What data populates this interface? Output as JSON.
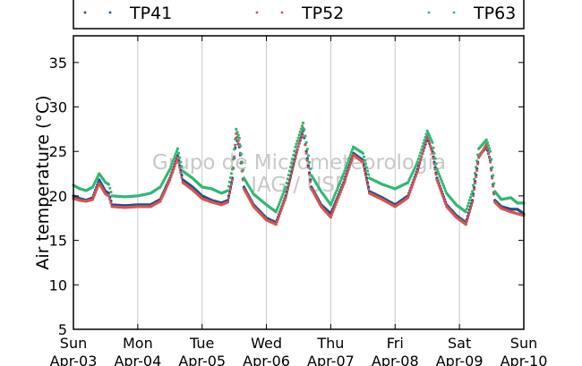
{
  "chart_data": {
    "type": "scatter",
    "title": "",
    "xlabel": "",
    "ylabel": "Air temperature (°C)",
    "watermark": [
      "Grupo de Micrometeorologia",
      "IAG / USP"
    ],
    "ylim": [
      5,
      38
    ],
    "yticks": [
      5,
      10,
      15,
      20,
      25,
      30,
      35
    ],
    "xlim": [
      "2016-04-03 00:00",
      "2016-04-10 00:00"
    ],
    "xticks": [
      {
        "day": "Sun",
        "date": "Apr-03"
      },
      {
        "day": "Mon",
        "date": "Apr-04"
      },
      {
        "day": "Tue",
        "date": "Apr-05"
      },
      {
        "day": "Wed",
        "date": "Apr-06"
      },
      {
        "day": "Thu",
        "date": "Apr-07"
      },
      {
        "day": "Fri",
        "date": "Apr-08"
      },
      {
        "day": "Sat",
        "date": "Apr-09"
      },
      {
        "day": "Sun",
        "date": "Apr-10"
      }
    ],
    "grid": "vertical",
    "legend_position": "top",
    "series": [
      {
        "name": "TP41",
        "color": "#1f4e8c",
        "points": [
          [
            0,
            20.0
          ],
          [
            0.1,
            19.7
          ],
          [
            0.2,
            19.5
          ],
          [
            0.3,
            19.8
          ],
          [
            0.4,
            21.8
          ],
          [
            0.5,
            20.5
          ],
          [
            0.55,
            20.3
          ],
          [
            0.6,
            19.0
          ],
          [
            0.8,
            18.9
          ],
          [
            1.0,
            19.0
          ],
          [
            1.2,
            19.0
          ],
          [
            1.35,
            19.6
          ],
          [
            1.5,
            22.0
          ],
          [
            1.62,
            24.5
          ],
          [
            1.7,
            21.8
          ],
          [
            1.85,
            21.0
          ],
          [
            2.0,
            20.0
          ],
          [
            2.15,
            19.5
          ],
          [
            2.3,
            19.2
          ],
          [
            2.4,
            19.5
          ],
          [
            2.47,
            22.0
          ],
          [
            2.53,
            26.5
          ],
          [
            2.58,
            25.5
          ],
          [
            2.65,
            21.0
          ],
          [
            2.8,
            19.0
          ],
          [
            3.0,
            17.5
          ],
          [
            3.15,
            17.0
          ],
          [
            3.3,
            20.0
          ],
          [
            3.45,
            24.5
          ],
          [
            3.57,
            27.3
          ],
          [
            3.62,
            25.0
          ],
          [
            3.7,
            21.0
          ],
          [
            3.85,
            19.0
          ],
          [
            4.0,
            18.0
          ],
          [
            4.2,
            21.5
          ],
          [
            4.35,
            24.8
          ],
          [
            4.5,
            24.0
          ],
          [
            4.6,
            20.5
          ],
          [
            4.8,
            19.8
          ],
          [
            5.0,
            19.0
          ],
          [
            5.2,
            20.0
          ],
          [
            5.35,
            23.0
          ],
          [
            5.5,
            26.5
          ],
          [
            5.58,
            25.0
          ],
          [
            5.65,
            22.0
          ],
          [
            5.8,
            19.0
          ],
          [
            5.95,
            17.8
          ],
          [
            6.1,
            17.0
          ],
          [
            6.2,
            19.5
          ],
          [
            6.3,
            24.5
          ],
          [
            6.42,
            25.5
          ],
          [
            6.48,
            24.0
          ],
          [
            6.55,
            19.5
          ],
          [
            6.65,
            18.8
          ],
          [
            6.8,
            18.5
          ],
          [
            6.9,
            18.5
          ],
          [
            7.0,
            18.0
          ]
        ]
      },
      {
        "name": "TP52",
        "color": "#d9534f",
        "points": [
          [
            0,
            19.7
          ],
          [
            0.1,
            19.5
          ],
          [
            0.2,
            19.4
          ],
          [
            0.3,
            19.6
          ],
          [
            0.4,
            21.4
          ],
          [
            0.5,
            20.2
          ],
          [
            0.55,
            20.0
          ],
          [
            0.6,
            18.8
          ],
          [
            0.8,
            18.7
          ],
          [
            1.0,
            18.8
          ],
          [
            1.2,
            18.8
          ],
          [
            1.35,
            19.4
          ],
          [
            1.5,
            21.8
          ],
          [
            1.62,
            24.3
          ],
          [
            1.7,
            21.5
          ],
          [
            1.85,
            20.7
          ],
          [
            2.0,
            19.7
          ],
          [
            2.15,
            19.3
          ],
          [
            2.3,
            19.0
          ],
          [
            2.4,
            19.3
          ],
          [
            2.47,
            21.8
          ],
          [
            2.53,
            27.0
          ],
          [
            2.58,
            25.8
          ],
          [
            2.65,
            20.8
          ],
          [
            2.8,
            18.8
          ],
          [
            3.0,
            17.3
          ],
          [
            3.15,
            16.8
          ],
          [
            3.3,
            19.8
          ],
          [
            3.45,
            24.3
          ],
          [
            3.57,
            27.6
          ],
          [
            3.62,
            24.8
          ],
          [
            3.7,
            20.8
          ],
          [
            3.85,
            18.8
          ],
          [
            4.0,
            17.6
          ],
          [
            4.2,
            21.3
          ],
          [
            4.35,
            24.6
          ],
          [
            4.5,
            23.8
          ],
          [
            4.6,
            20.3
          ],
          [
            4.8,
            19.6
          ],
          [
            5.0,
            18.8
          ],
          [
            5.2,
            19.8
          ],
          [
            5.35,
            22.8
          ],
          [
            5.5,
            26.8
          ],
          [
            5.58,
            24.8
          ],
          [
            5.65,
            21.8
          ],
          [
            5.8,
            18.8
          ],
          [
            5.95,
            17.6
          ],
          [
            6.1,
            16.8
          ],
          [
            6.2,
            19.3
          ],
          [
            6.3,
            24.3
          ],
          [
            6.42,
            25.8
          ],
          [
            6.48,
            23.8
          ],
          [
            6.55,
            19.3
          ],
          [
            6.65,
            18.6
          ],
          [
            6.8,
            18.2
          ],
          [
            6.9,
            18.0
          ],
          [
            7.0,
            17.8
          ]
        ]
      },
      {
        "name": "TP63",
        "color": "#2eb872",
        "points": [
          [
            0,
            21.2
          ],
          [
            0.1,
            20.8
          ],
          [
            0.2,
            20.6
          ],
          [
            0.3,
            21.0
          ],
          [
            0.4,
            22.5
          ],
          [
            0.5,
            21.5
          ],
          [
            0.55,
            21.3
          ],
          [
            0.6,
            20.0
          ],
          [
            0.8,
            19.9
          ],
          [
            1.0,
            20.0
          ],
          [
            1.2,
            20.3
          ],
          [
            1.35,
            21.0
          ],
          [
            1.5,
            23.0
          ],
          [
            1.62,
            25.3
          ],
          [
            1.7,
            22.8
          ],
          [
            1.85,
            22.0
          ],
          [
            2.0,
            21.0
          ],
          [
            2.15,
            20.8
          ],
          [
            2.3,
            20.3
          ],
          [
            2.4,
            20.6
          ],
          [
            2.47,
            23.0
          ],
          [
            2.53,
            27.5
          ],
          [
            2.58,
            26.5
          ],
          [
            2.65,
            22.0
          ],
          [
            2.8,
            20.2
          ],
          [
            3.0,
            19.0
          ],
          [
            3.15,
            18.2
          ],
          [
            3.3,
            21.0
          ],
          [
            3.45,
            25.5
          ],
          [
            3.57,
            28.2
          ],
          [
            3.62,
            26.0
          ],
          [
            3.7,
            22.3
          ],
          [
            3.85,
            20.5
          ],
          [
            4.0,
            19.0
          ],
          [
            4.2,
            22.5
          ],
          [
            4.35,
            25.5
          ],
          [
            4.5,
            24.8
          ],
          [
            4.6,
            22.0
          ],
          [
            4.8,
            21.3
          ],
          [
            5.0,
            20.8
          ],
          [
            5.2,
            21.5
          ],
          [
            5.35,
            23.8
          ],
          [
            5.5,
            27.3
          ],
          [
            5.58,
            26.0
          ],
          [
            5.65,
            23.0
          ],
          [
            5.8,
            20.3
          ],
          [
            5.95,
            19.0
          ],
          [
            6.1,
            18.2
          ],
          [
            6.2,
            20.5
          ],
          [
            6.3,
            25.3
          ],
          [
            6.42,
            26.3
          ],
          [
            6.48,
            25.0
          ],
          [
            6.55,
            20.5
          ],
          [
            6.65,
            19.6
          ],
          [
            6.8,
            19.8
          ],
          [
            6.9,
            19.2
          ],
          [
            7.0,
            19.2
          ]
        ]
      }
    ]
  }
}
